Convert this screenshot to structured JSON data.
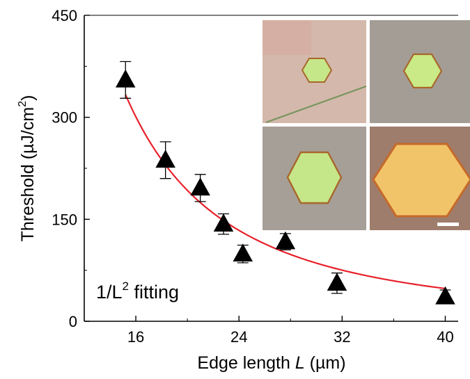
{
  "chart_data": {
    "type": "scatter",
    "xlabel_text": "Edge length ",
    "xlabel_var": "L",
    "xlabel_unit": " (µm)",
    "ylabel_text": "Threshold (µJ/cm",
    "ylabel_sup": "2",
    "ylabel_end": ")",
    "xlim": [
      12,
      41
    ],
    "ylim": [
      0,
      450
    ],
    "xticks": [
      16,
      24,
      32,
      40
    ],
    "yticks": [
      0,
      150,
      300,
      450
    ],
    "annotation_main": "1/L",
    "annotation_sup": "2",
    "annotation_end": " fitting",
    "series": [
      {
        "marker": "triangle",
        "color": "#000000",
        "x": [
          15.2,
          18.3,
          21.0,
          22.8,
          24.3,
          27.6,
          31.6,
          40.0
        ],
        "y": [
          355,
          237,
          196,
          143,
          99,
          117,
          56,
          36
        ],
        "yerr": [
          27,
          27,
          20,
          15,
          13,
          12,
          15,
          10
        ]
      }
    ],
    "fit": {
      "type": "1/L^2",
      "color": "#e8202a",
      "coefficient": 77000,
      "x_range": [
        15.2,
        40.0
      ]
    },
    "inset": {
      "panels": 4,
      "description_colors": {
        "crystal_small": "#c6e68a",
        "crystal_large": "#f2c46a",
        "background_pink": "#d6b9ab",
        "background_gray": "#9e9890"
      }
    }
  }
}
